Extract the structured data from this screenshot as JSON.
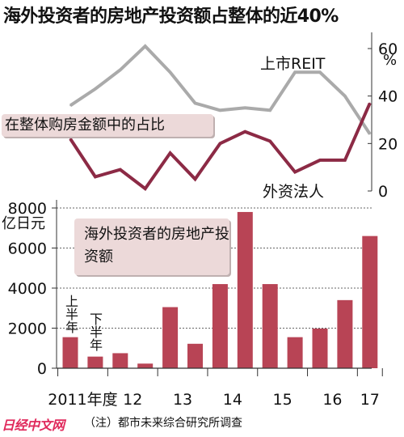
{
  "title": "海外投资者的房地产投资额占整体的近40%",
  "colors": {
    "investment_bar": "#b84455",
    "share_reit_line": "#aaaaaa",
    "share_foreign_line": "#8c2a45",
    "label_bg": "#ecd9d9"
  },
  "chart_data": [
    {
      "type": "line",
      "title": "在整体购房金额中的占比",
      "categories": [
        "2011上半年",
        "2011下半年",
        "2012上半年",
        "2012下半年",
        "2013上半年",
        "2013下半年",
        "2014上半年",
        "2014下半年",
        "2015上半年",
        "2015下半年",
        "2016上半年",
        "2016下半年",
        "2017上半年"
      ],
      "series": [
        {
          "name": "上市REIT",
          "values": [
            36,
            43,
            51,
            61,
            50,
            37,
            34,
            35,
            34,
            50,
            50,
            40,
            24
          ]
        },
        {
          "name": "外资法人",
          "values": [
            22,
            6,
            9,
            1,
            16,
            5,
            20,
            25,
            21,
            8,
            13,
            13,
            37
          ]
        }
      ],
      "yaxis": {
        "ticks": [
          "0",
          "20",
          "40",
          "60"
        ],
        "unit": "%",
        "ylim": [
          0,
          60
        ],
        "side": "right"
      }
    },
    {
      "type": "bar",
      "title": "海外投资者的房地产投资额",
      "categories": [
        "2011上半年",
        "2011下半年",
        "2012上半年",
        "2012下半年",
        "2013上半年",
        "2013下半年",
        "2014上半年",
        "2014下半年",
        "2015上半年",
        "2015下半年",
        "2016上半年",
        "2016下半年",
        "2017上半年"
      ],
      "values": [
        1550,
        580,
        750,
        230,
        3050,
        1220,
        4200,
        7800,
        4200,
        1550,
        1980,
        3400,
        6600
      ],
      "yaxis": {
        "ticks": [
          "0",
          "2000",
          "4000",
          "6000",
          "8000"
        ],
        "unit": "亿日元",
        "ylim": [
          0,
          8000
        ],
        "side": "left"
      },
      "xaxis": {
        "year_labels": [
          "2011年度",
          "12",
          "13",
          "14",
          "15",
          "16",
          "17"
        ]
      },
      "annotations": {
        "first_half": "上半年",
        "second_half": "下半年"
      }
    }
  ],
  "footer": {
    "logo": "日经中文网",
    "source_note": "（注）都市未来综合研究所调查"
  }
}
